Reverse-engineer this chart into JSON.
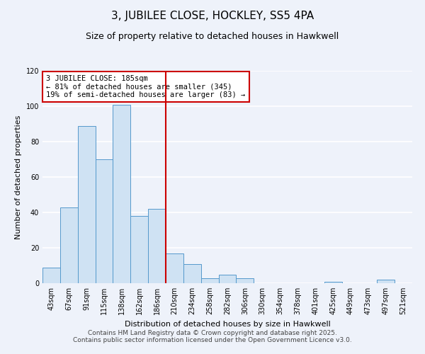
{
  "title": "3, JUBILEE CLOSE, HOCKLEY, SS5 4PA",
  "subtitle": "Size of property relative to detached houses in Hawkwell",
  "xlabel": "Distribution of detached houses by size in Hawkwell",
  "ylabel": "Number of detached properties",
  "bar_labels": [
    "43sqm",
    "67sqm",
    "91sqm",
    "115sqm",
    "138sqm",
    "162sqm",
    "186sqm",
    "210sqm",
    "234sqm",
    "258sqm",
    "282sqm",
    "306sqm",
    "330sqm",
    "354sqm",
    "378sqm",
    "401sqm",
    "425sqm",
    "449sqm",
    "473sqm",
    "497sqm",
    "521sqm"
  ],
  "bar_values": [
    9,
    43,
    89,
    70,
    101,
    38,
    42,
    17,
    11,
    3,
    5,
    3,
    0,
    0,
    0,
    0,
    1,
    0,
    0,
    2,
    0
  ],
  "bar_color": "#cfe2f3",
  "bar_edge_color": "#5599cc",
  "vline_x": 6.5,
  "vline_color": "#cc0000",
  "annotation_line1": "3 JUBILEE CLOSE: 185sqm",
  "annotation_line2": "← 81% of detached houses are smaller (345)",
  "annotation_line3": "19% of semi-detached houses are larger (83) →",
  "annotation_box_color": "#cc0000",
  "ylim": [
    0,
    120
  ],
  "yticks": [
    0,
    20,
    40,
    60,
    80,
    100,
    120
  ],
  "footer1": "Contains HM Land Registry data © Crown copyright and database right 2025.",
  "footer2": "Contains public sector information licensed under the Open Government Licence v3.0.",
  "background_color": "#eef2fa",
  "grid_color": "#ffffff",
  "title_fontsize": 11,
  "subtitle_fontsize": 9,
  "axis_label_fontsize": 8,
  "tick_fontsize": 7,
  "footer_fontsize": 6.5
}
